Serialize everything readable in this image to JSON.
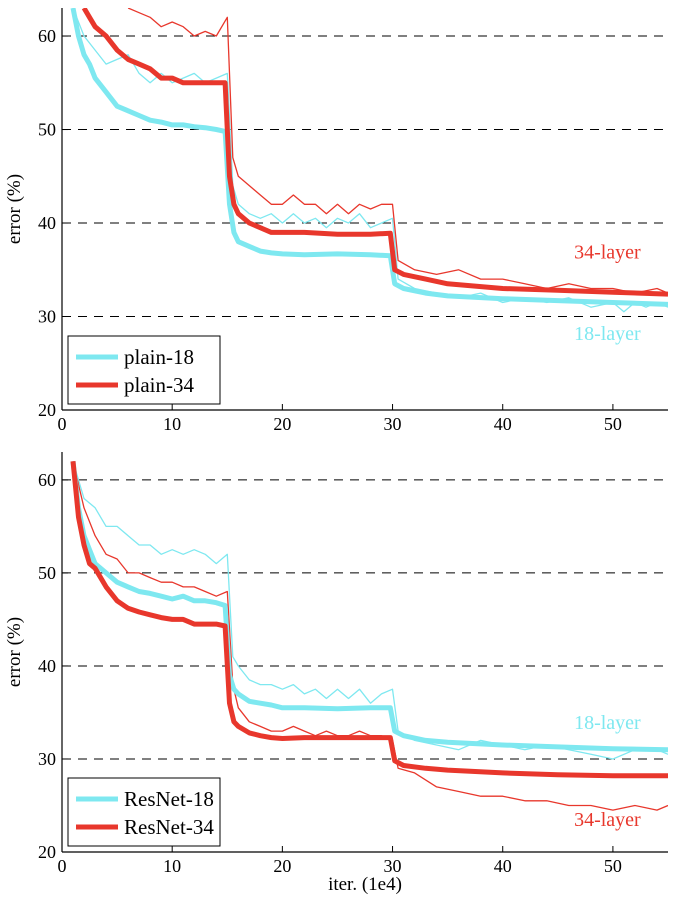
{
  "chart_data": [
    {
      "id": "top",
      "type": "line",
      "xlabel": "",
      "ylabel": "error (%)",
      "xlim": [
        0,
        55
      ],
      "ylim": [
        20,
        63
      ],
      "xticks": [
        0,
        10,
        20,
        30,
        40,
        50
      ],
      "yticks": [
        20,
        30,
        40,
        50,
        60
      ],
      "grid": "horizontal dashed at 30, 40, 50, 60",
      "legend_position": "bottom-left",
      "legend": [
        {
          "label": "plain-18",
          "color": "#7ee8f0"
        },
        {
          "label": "plain-34",
          "color": "#e8372c"
        }
      ],
      "annotations": [
        {
          "text": "34-layer",
          "x": 49.5,
          "y": 36.2,
          "color": "#e8372c"
        },
        {
          "text": "18-layer",
          "x": 49.5,
          "y": 27.5,
          "color": "#7ee8f0"
        }
      ],
      "series": [
        {
          "name": "plain-18",
          "style": "thick",
          "color": "#7ee8f0",
          "x": [
            1,
            1.5,
            2,
            2.5,
            3,
            4,
            5,
            6,
            7,
            8,
            9,
            10,
            11,
            12,
            13,
            14,
            14.8,
            15.2,
            15.6,
            16,
            17,
            18,
            19,
            20,
            22,
            25,
            28,
            29.8,
            30.2,
            31,
            33,
            35,
            40,
            45,
            50,
            55
          ],
          "y": [
            63,
            60,
            58,
            57,
            55.5,
            54,
            52.5,
            52,
            51.5,
            51,
            50.8,
            50.5,
            50.5,
            50.3,
            50.2,
            50,
            49.8,
            42,
            39,
            38,
            37.5,
            37,
            36.8,
            36.7,
            36.6,
            36.7,
            36.6,
            36.5,
            33.5,
            33,
            32.5,
            32.2,
            31.9,
            31.7,
            31.5,
            31.3
          ]
        },
        {
          "name": "plain-18 (train)",
          "style": "thin",
          "color": "#7ee8f0",
          "x": [
            1,
            2,
            3,
            4,
            5,
            6,
            7,
            8,
            9,
            10,
            11,
            12,
            13,
            14,
            15,
            15.5,
            16,
            17,
            18,
            19,
            20,
            21,
            22,
            23,
            24,
            25,
            26,
            27,
            28,
            29,
            30,
            30.5,
            32,
            34,
            36,
            38,
            40,
            42,
            44,
            46,
            48,
            50,
            51,
            52,
            53,
            54,
            55
          ],
          "y": [
            63,
            60,
            58.5,
            57,
            57.5,
            58,
            56,
            55,
            56,
            55,
            55.5,
            56,
            55,
            55.5,
            56,
            44,
            42,
            41,
            40.5,
            41,
            40,
            41,
            40,
            40.5,
            39.5,
            40.5,
            40,
            41,
            39.5,
            40,
            40.5,
            34,
            33,
            32.5,
            32,
            32.5,
            31.5,
            32,
            31.5,
            32,
            31,
            31.5,
            30.5,
            31.5,
            31,
            31.5,
            31
          ]
        },
        {
          "name": "plain-34",
          "style": "thick",
          "color": "#e8372c",
          "x": [
            2,
            2.5,
            3,
            4,
            5,
            6,
            7,
            8,
            9,
            10,
            11,
            12,
            13,
            14,
            14.8,
            15.2,
            15.6,
            16,
            17,
            18,
            19,
            20,
            22,
            25,
            28,
            29.8,
            30.2,
            31,
            33,
            35,
            40,
            45,
            50,
            55
          ],
          "y": [
            63,
            62,
            61,
            60,
            58.5,
            57.5,
            57,
            56.5,
            55.5,
            55.5,
            55,
            55,
            55,
            55,
            55,
            45,
            42,
            41,
            40,
            39.5,
            39,
            39,
            39,
            38.8,
            38.8,
            38.9,
            35,
            34.5,
            34,
            33.5,
            33,
            32.8,
            32.6,
            32.4
          ]
        },
        {
          "name": "plain-34 (train)",
          "style": "thin",
          "color": "#e8372c",
          "x": [
            6,
            7,
            8,
            9,
            10,
            11,
            12,
            13,
            14,
            15,
            15.5,
            16,
            17,
            18,
            19,
            20,
            21,
            22,
            23,
            24,
            25,
            26,
            27,
            28,
            29,
            30,
            30.5,
            32,
            34,
            36,
            38,
            40,
            42,
            44,
            46,
            48,
            50,
            52,
            54,
            55
          ],
          "y": [
            63,
            62.5,
            62,
            61,
            61.5,
            61,
            60,
            60.5,
            60,
            62,
            47,
            45,
            44,
            43,
            42,
            42,
            43,
            42,
            42,
            41,
            42,
            41,
            42,
            41.5,
            42,
            42,
            36,
            35,
            34.5,
            35,
            34,
            34,
            33.5,
            33,
            33.5,
            33,
            33,
            32.5,
            33,
            32.5
          ]
        }
      ]
    },
    {
      "id": "bottom",
      "type": "line",
      "xlabel": "iter. (1e4)",
      "ylabel": "error (%)",
      "xlim": [
        0,
        55
      ],
      "ylim": [
        20,
        63
      ],
      "xticks": [
        0,
        10,
        20,
        30,
        40,
        50
      ],
      "yticks": [
        20,
        30,
        40,
        50,
        60
      ],
      "grid": "horizontal dashed at 30, 40, 50, 60",
      "legend_position": "bottom-left",
      "legend": [
        {
          "label": "ResNet-18",
          "color": "#7ee8f0"
        },
        {
          "label": "ResNet-34",
          "color": "#e8372c"
        }
      ],
      "annotations": [
        {
          "text": "18-layer",
          "x": 49.5,
          "y": 33.2,
          "color": "#7ee8f0"
        },
        {
          "text": "34-layer",
          "x": 49.5,
          "y": 22.8,
          "color": "#e8372c"
        }
      ],
      "series": [
        {
          "name": "ResNet-18",
          "style": "thick",
          "color": "#7ee8f0",
          "x": [
            1,
            1.5,
            2,
            2.5,
            3,
            4,
            5,
            6,
            7,
            8,
            9,
            10,
            11,
            12,
            13,
            14,
            14.8,
            15.2,
            15.6,
            16,
            17,
            18,
            19,
            20,
            22,
            25,
            28,
            29.8,
            30.2,
            31,
            33,
            35,
            40,
            45,
            50,
            55
          ],
          "y": [
            62,
            57,
            54,
            52.5,
            51,
            50,
            49,
            48.5,
            48,
            47.8,
            47.5,
            47.2,
            47.5,
            47,
            47,
            46.8,
            46.5,
            39,
            37.5,
            37,
            36.2,
            36,
            35.8,
            35.5,
            35.5,
            35.4,
            35.5,
            35.5,
            33,
            32.5,
            32,
            31.8,
            31.5,
            31.3,
            31.1,
            31
          ]
        },
        {
          "name": "ResNet-18 (train)",
          "style": "thin",
          "color": "#7ee8f0",
          "x": [
            1,
            2,
            3,
            4,
            5,
            6,
            7,
            8,
            9,
            10,
            11,
            12,
            13,
            14,
            15,
            15.5,
            16,
            17,
            18,
            19,
            20,
            21,
            22,
            23,
            24,
            25,
            26,
            27,
            28,
            29,
            30,
            30.5,
            32,
            34,
            36,
            38,
            40,
            42,
            44,
            46,
            48,
            50,
            52,
            54,
            55
          ],
          "y": [
            62,
            58,
            57,
            55,
            55,
            54,
            53,
            53,
            52,
            52.5,
            52,
            52.5,
            52,
            51,
            52,
            41,
            40,
            38.5,
            38,
            38,
            37.5,
            38,
            37,
            37.5,
            36.5,
            37.5,
            36.5,
            37.5,
            36,
            37,
            37.5,
            33,
            32,
            31.5,
            31,
            32,
            31.5,
            31,
            31.5,
            31,
            30.5,
            30,
            31,
            31,
            30.5
          ]
        },
        {
          "name": "ResNet-34",
          "style": "thick",
          "color": "#e8372c",
          "x": [
            1,
            1.5,
            2,
            2.5,
            3,
            4,
            5,
            6,
            7,
            8,
            9,
            10,
            11,
            12,
            13,
            14,
            14.8,
            15.2,
            15.6,
            16,
            17,
            18,
            19,
            20,
            22,
            25,
            28,
            29.8,
            30.2,
            31,
            33,
            35,
            40,
            45,
            50,
            55
          ],
          "y": [
            62,
            56,
            53,
            51,
            50.5,
            48.5,
            47,
            46.2,
            45.8,
            45.5,
            45.2,
            45,
            45,
            44.5,
            44.5,
            44.5,
            44.3,
            36,
            34,
            33.5,
            32.8,
            32.5,
            32.3,
            32.2,
            32.3,
            32.3,
            32.3,
            32.3,
            29.8,
            29.3,
            29,
            28.8,
            28.5,
            28.3,
            28.2,
            28.2
          ]
        },
        {
          "name": "ResNet-34 (train)",
          "style": "thin",
          "color": "#e8372c",
          "x": [
            1,
            2,
            3,
            4,
            5,
            6,
            7,
            8,
            9,
            10,
            11,
            12,
            13,
            14,
            15,
            15.5,
            16,
            17,
            18,
            19,
            20,
            21,
            22,
            23,
            24,
            25,
            26,
            27,
            28,
            29,
            30,
            30.5,
            32,
            34,
            36,
            38,
            40,
            42,
            44,
            46,
            48,
            50,
            52,
            54,
            55
          ],
          "y": [
            62,
            57,
            54,
            52,
            51.5,
            50,
            50,
            49.5,
            49,
            49,
            48.5,
            48.5,
            48,
            47.5,
            48,
            38,
            35.5,
            34,
            33.5,
            33,
            33,
            33.5,
            33,
            32.5,
            33,
            32.5,
            32.5,
            33,
            32.5,
            32.5,
            32,
            29,
            28.5,
            27,
            26.5,
            26,
            26,
            25.5,
            25.5,
            25,
            25,
            24.5,
            25,
            24.5,
            25
          ]
        }
      ]
    }
  ]
}
